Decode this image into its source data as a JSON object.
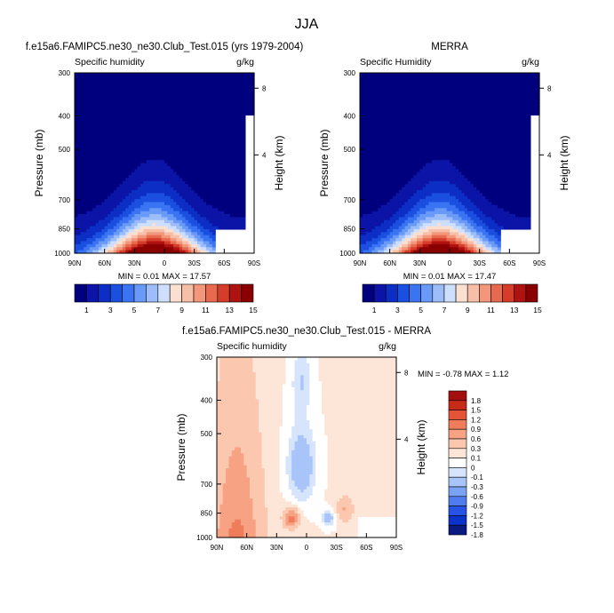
{
  "figure_title": "JJA",
  "colors": {
    "model_scale": [
      "#00007f",
      "#0b14a6",
      "#0c2ec4",
      "#1b4fe0",
      "#3b74f2",
      "#6a9af7",
      "#9cbdfa",
      "#cddffc",
      "#fbe0d2",
      "#f8bfa8",
      "#f3977b",
      "#e76a4f",
      "#d53d2a",
      "#b01212",
      "#8a0000"
    ],
    "diff_scale": [
      "#0a1a80",
      "#0b33c9",
      "#2653e6",
      "#4f7df0",
      "#7aa2f5",
      "#a9c4f8",
      "#d6e5fb",
      "#ffffff",
      "#fde6d8",
      "#fbc8af",
      "#f6a283",
      "#ef7c5a",
      "#e55437",
      "#c82a18",
      "#a50e0e"
    ]
  },
  "chart_data": [
    {
      "type": "heatmap",
      "title": "f.e15a6.FAMIPC5.ne30_ne30.Club_Test.015 (yrs 1979-2004)",
      "subtitle_left": "Specific humidity",
      "subtitle_right": "g/kg",
      "ylabel": "Pressure (mb)",
      "ylabel_right": "Height (km)",
      "x_ticks": [
        "90N",
        "60N",
        "30N",
        "0",
        "30S",
        "60S",
        "90S"
      ],
      "y_ticks": [
        "300",
        "400",
        "500",
        "700",
        "850",
        "1000"
      ],
      "y_right_ticks": [
        "8",
        "4"
      ],
      "stats": {
        "min": "0.01",
        "max": "17.57",
        "label": "MIN =  0.01  MAX = 17.57"
      },
      "colorbar_labels": [
        "1",
        "3",
        "5",
        "7",
        "9",
        "11",
        "13",
        "15"
      ]
    },
    {
      "type": "heatmap",
      "title": "MERRA",
      "subtitle_left": "Specific Humidity",
      "subtitle_right": "g/kg",
      "ylabel": "Pressure (mb)",
      "ylabel_right": "Height (km)",
      "x_ticks": [
        "90N",
        "60N",
        "30N",
        "0",
        "30S",
        "60S",
        "90S"
      ],
      "y_ticks": [
        "300",
        "400",
        "500",
        "700",
        "850",
        "1000"
      ],
      "y_right_ticks": [
        "8",
        "4"
      ],
      "stats": {
        "min": "0.01",
        "max": "17.47",
        "label": "MIN =  0.01  MAX = 17.47"
      },
      "colorbar_labels": [
        "1",
        "3",
        "5",
        "7",
        "9",
        "11",
        "13",
        "15"
      ]
    },
    {
      "type": "heatmap",
      "title": "f.e15a6.FAMIPC5.ne30_ne30.Club_Test.015 - MERRA",
      "subtitle_left": "Specific humidity",
      "subtitle_right": "g/kg",
      "ylabel": "Pressure (mb)",
      "ylabel_right": "Height (km)",
      "x_ticks": [
        "90N",
        "60N",
        "30N",
        "0",
        "30S",
        "60S",
        "90S"
      ],
      "y_ticks": [
        "300",
        "400",
        "500",
        "700",
        "850",
        "1000"
      ],
      "y_right_ticks": [
        "8",
        "4"
      ],
      "stats": {
        "min": "-0.78",
        "max": "1.12",
        "label": "MIN = -0.78  MAX =  1.12"
      },
      "colorbar_labels": [
        "1.8",
        "1.5",
        "1.2",
        "0.9",
        "0.6",
        "0.3",
        "0.1",
        "0",
        "-0.1",
        "-0.3",
        "-0.6",
        "-0.9",
        "-1.2",
        "-1.5",
        "-1.8"
      ]
    }
  ]
}
